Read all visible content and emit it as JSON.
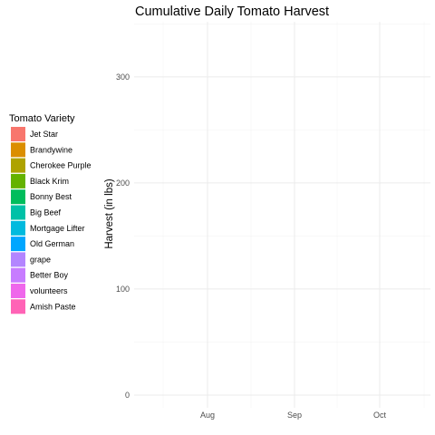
{
  "chart_data": {
    "type": "area",
    "title": "Cumulative Daily Tomato Harvest",
    "xlabel": "",
    "ylabel": "Harvest (in lbs)",
    "x_ticks": [
      "Aug",
      "Sep",
      "Oct"
    ],
    "y_ticks": [
      0,
      100,
      200,
      300
    ],
    "ylim": [
      -12,
      352
    ],
    "grid": true,
    "legend": {
      "title": "Tomato Variety",
      "position": "left",
      "entries": [
        {
          "name": "Jet Star",
          "color": "#F8766D"
        },
        {
          "name": "Brandywine",
          "color": "#DB8E00"
        },
        {
          "name": "Cherokee Purple",
          "color": "#AEA200"
        },
        {
          "name": "Black Krim",
          "color": "#64B200"
        },
        {
          "name": "Bonny Best",
          "color": "#00BD5C"
        },
        {
          "name": "Big Beef",
          "color": "#00C1A7"
        },
        {
          "name": "Mortgage Lifter",
          "color": "#00BADE"
        },
        {
          "name": "Old German",
          "color": "#00A6FF"
        },
        {
          "name": "grape",
          "color": "#B385FF"
        },
        {
          "name": "Better Boy",
          "color": "#C77CFF"
        },
        {
          "name": "volunteers",
          "color": "#EF67EB"
        },
        {
          "name": "Amish Paste",
          "color": "#FF63B6"
        }
      ]
    }
  }
}
